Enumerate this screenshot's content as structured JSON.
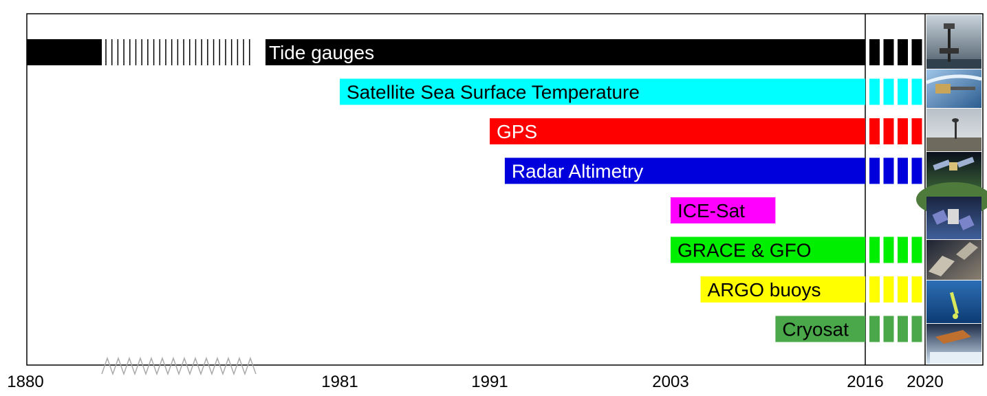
{
  "chart_data": {
    "type": "bar",
    "subtype": "timeline",
    "title": "",
    "xlabel": "",
    "ylabel": "",
    "x_ticks": [
      "1880",
      "1981",
      "1991",
      "2003",
      "2016",
      "2020"
    ],
    "axis_note": "non-linear time axis with a break (zig-zag) between 1880 and ~1950",
    "series": [
      {
        "name": "Tide gauges",
        "start": "1880",
        "end": "2016",
        "continues_to": "2020",
        "color": "#000000",
        "label_color": "#ffffff",
        "early_period": "sparse records shown as hatching"
      },
      {
        "name": "Satellite Sea Surface Temperature",
        "start": "1981",
        "end": "2016",
        "continues_to": "2020",
        "color": "#00ffff",
        "label_color": "#000000"
      },
      {
        "name": "GPS",
        "start": "1991",
        "end": "2016",
        "continues_to": "2020",
        "color": "#ff0000",
        "label_color": "#ffffff"
      },
      {
        "name": "Radar Altimetry",
        "start": "1992",
        "end": "2016",
        "continues_to": "2020",
        "color": "#0000dd",
        "label_color": "#ffffff"
      },
      {
        "name": "ICE-Sat",
        "start": "2003",
        "end": "2010",
        "continues_to": null,
        "color": "#ff00ff",
        "label_color": "#000000"
      },
      {
        "name": "GRACE & GFO",
        "start": "2003",
        "end": "2016",
        "continues_to": "2020",
        "color": "#00ee00",
        "label_color": "#000000"
      },
      {
        "name": "ARGO buoys",
        "start": "2005",
        "end": "2016",
        "continues_to": "2020",
        "color": "#ffff00",
        "label_color": "#000000"
      },
      {
        "name": "Cryosat",
        "start": "2010",
        "end": "2016",
        "continues_to": "2020",
        "color": "#4aa84a",
        "label_color": "#000000"
      }
    ],
    "grid": false,
    "legend": "none",
    "photos": [
      "tide-gauge-photo",
      "sst-satellite-photo",
      "gps-station-photo",
      "altimetry-satellite-photo",
      "icesat-photo",
      "grace-satellite-photo",
      "argo-buoy-photo",
      "cryosat-photo"
    ]
  }
}
